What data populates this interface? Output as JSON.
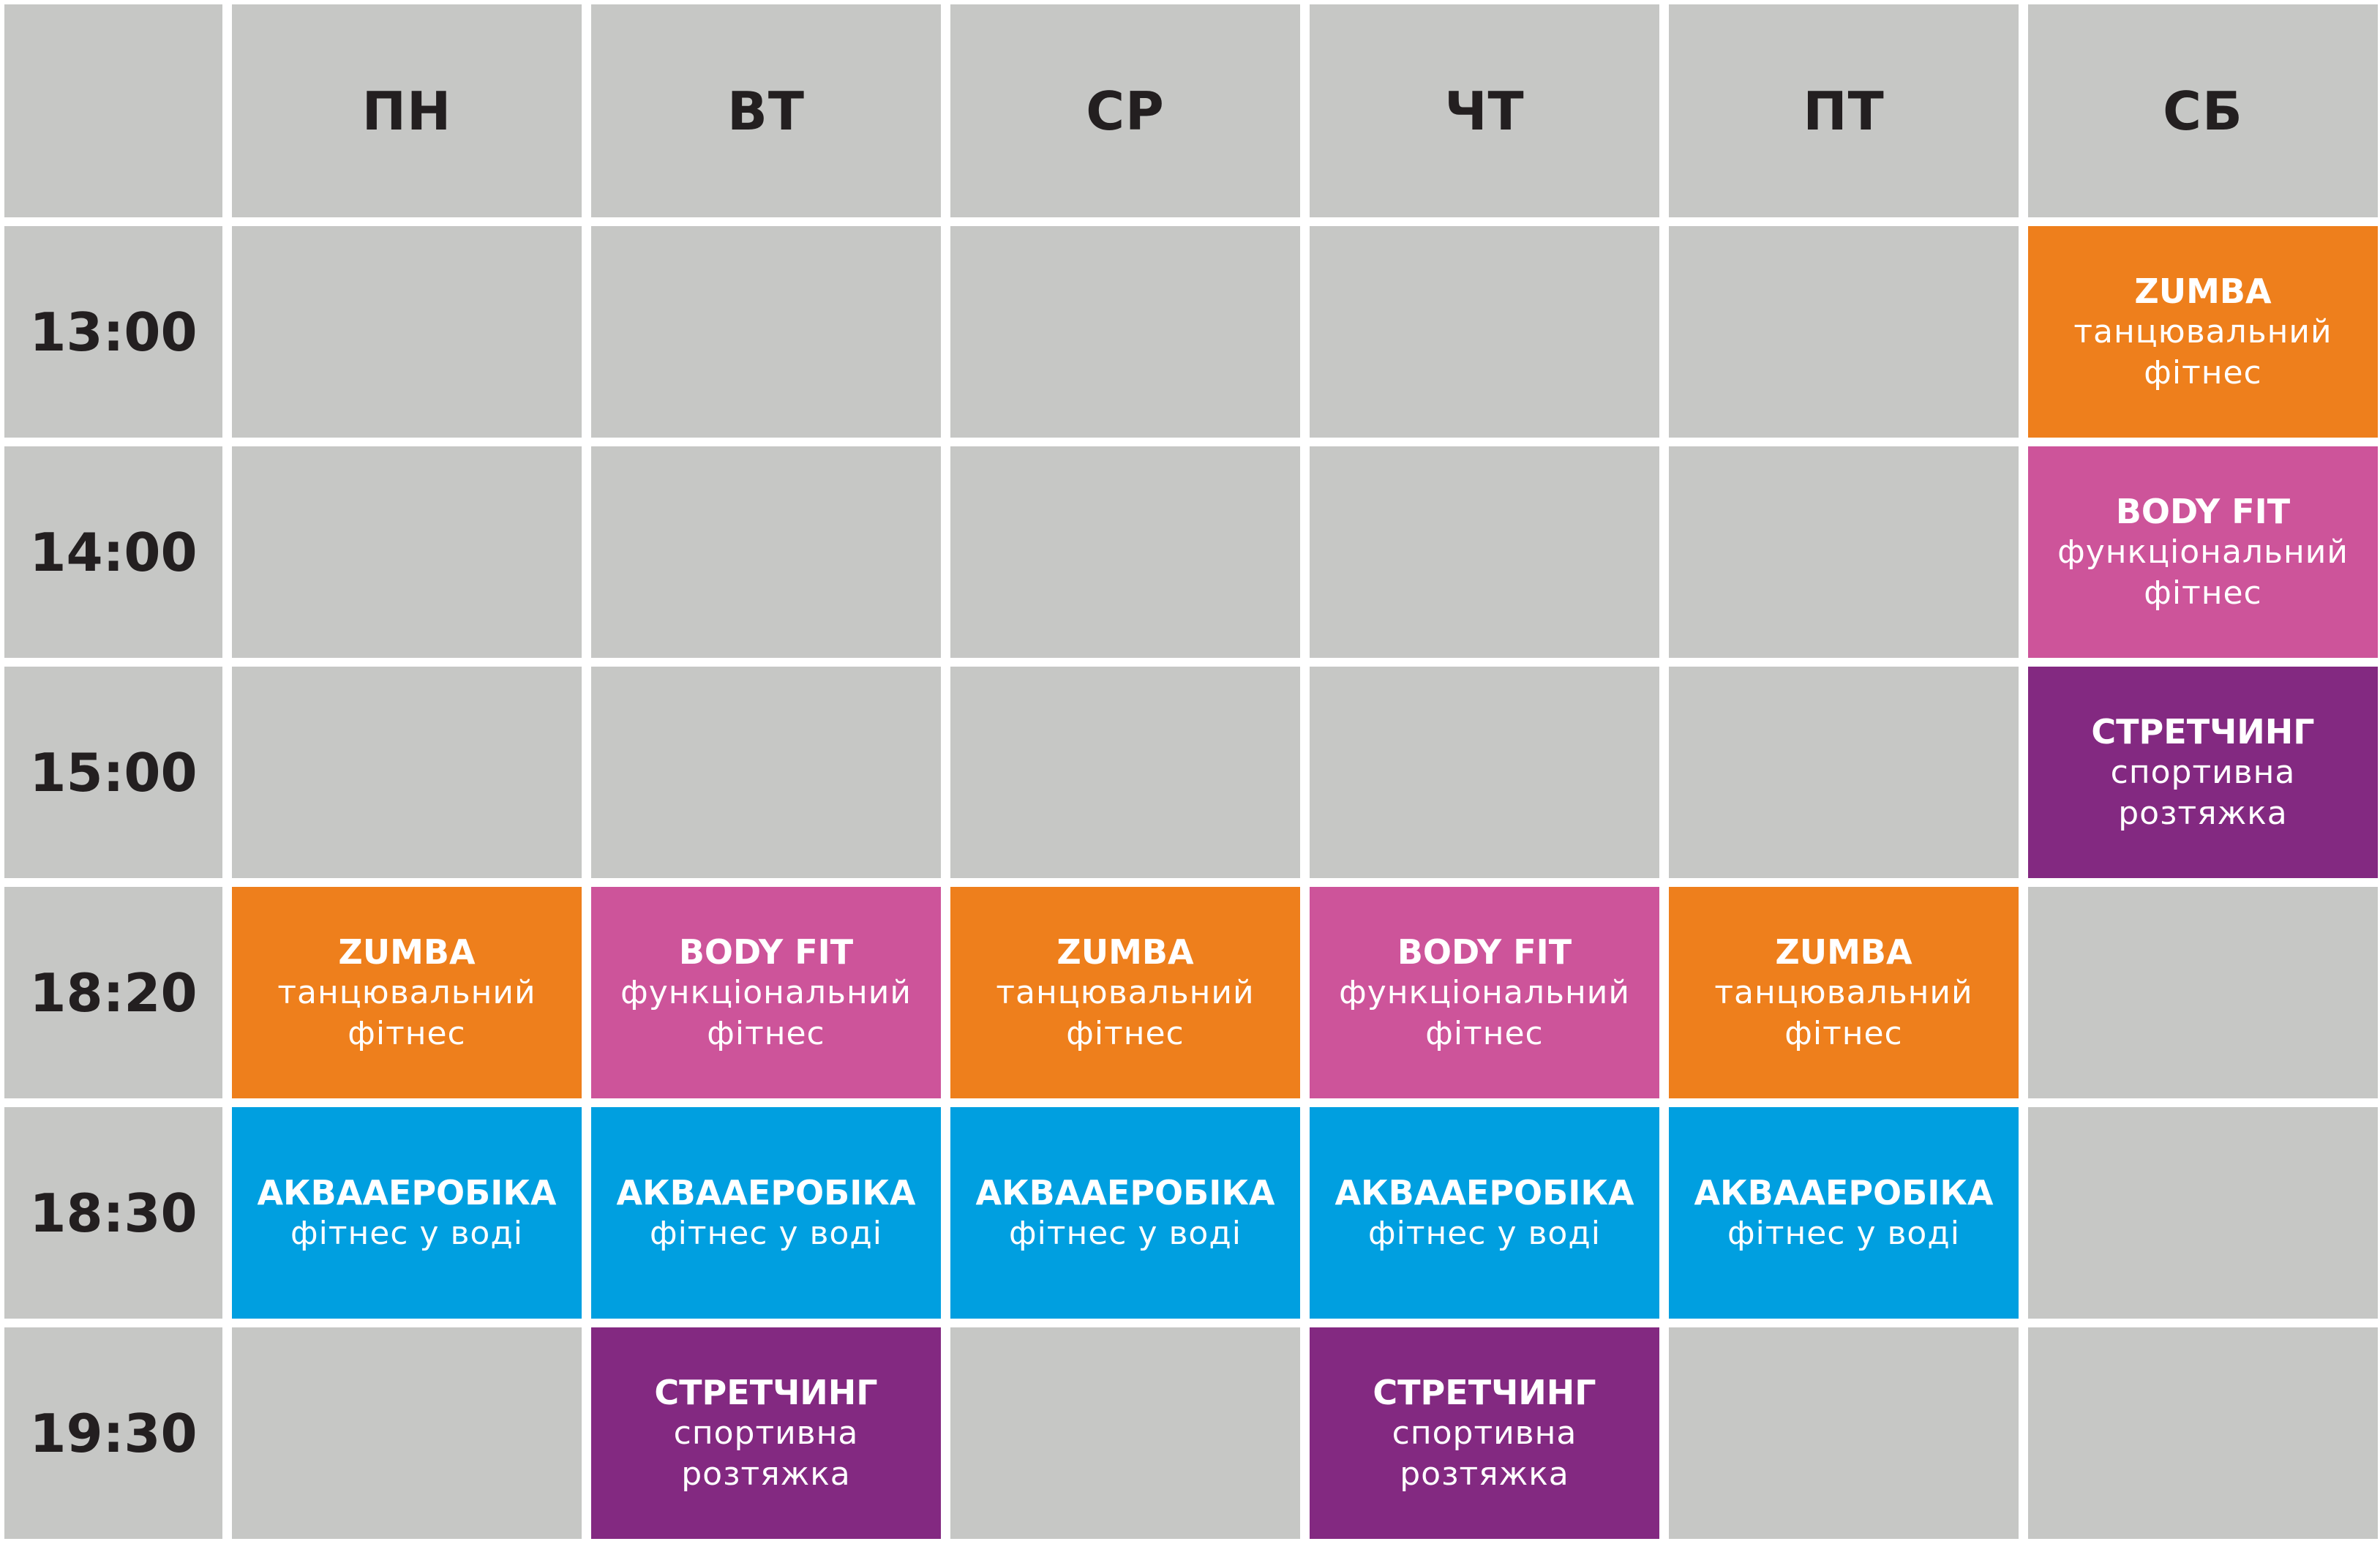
{
  "days": [
    "ПН",
    "ВТ",
    "СР",
    "ЧТ",
    "ПТ",
    "СБ"
  ],
  "times": [
    "13:00",
    "14:00",
    "15:00",
    "18:20",
    "18:30",
    "19:30"
  ],
  "colors": {
    "empty": "#c6c7c5",
    "zumba": "#ee7f1c",
    "bodyfit": "#cd549a",
    "stretch": "#832981",
    "aqua": "#009fe0",
    "header_text": "#231f20",
    "class_text": "#ffffff"
  },
  "classes": {
    "zumba": {
      "title": "ZUMBA",
      "subtitle": [
        "танцювальний",
        "фітнес"
      ]
    },
    "bodyfit": {
      "title": "BODY FIT",
      "subtitle": [
        "функціональний",
        "фітнес"
      ]
    },
    "stretch": {
      "title": "СТРЕТЧИНГ",
      "subtitle": [
        "спортивна",
        "розтяжка"
      ]
    },
    "aqua": {
      "title": "АКВААЕРОБІКА",
      "subtitle": [
        "фітнес у воді"
      ]
    }
  },
  "schedule": [
    [
      null,
      null,
      null,
      null,
      null,
      "zumba"
    ],
    [
      null,
      null,
      null,
      null,
      null,
      "bodyfit"
    ],
    [
      null,
      null,
      null,
      null,
      null,
      "stretch"
    ],
    [
      "zumba",
      "bodyfit",
      "zumba",
      "bodyfit",
      "zumba",
      null
    ],
    [
      "aqua",
      "aqua",
      "aqua",
      "aqua",
      "aqua",
      null
    ],
    [
      null,
      "stretch",
      null,
      "stretch",
      null,
      null
    ]
  ]
}
